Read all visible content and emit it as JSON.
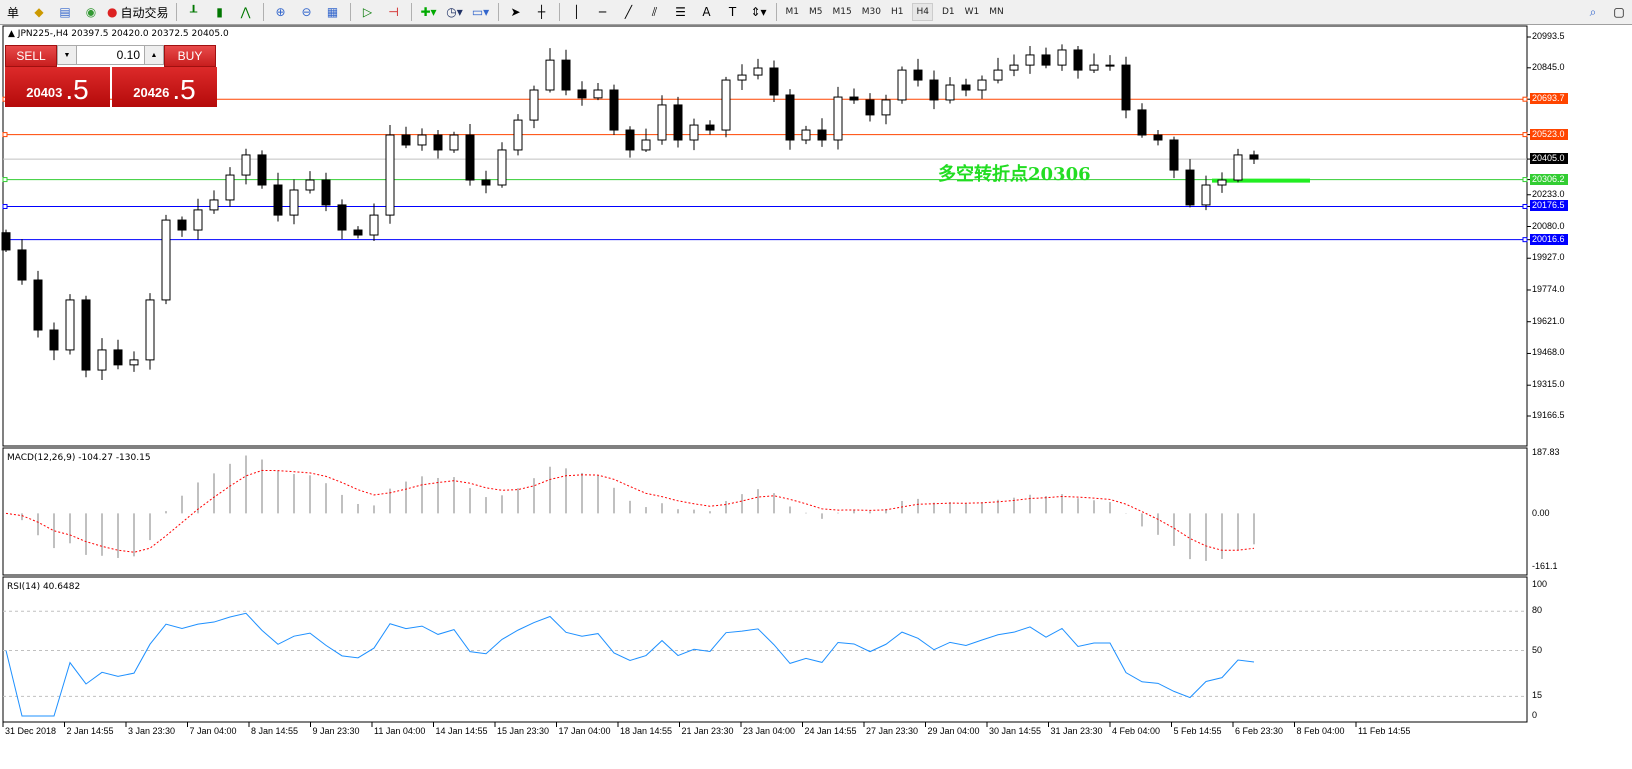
{
  "toolbar": {
    "left_text": "单",
    "auto_trade": "自动交易",
    "timeframes": [
      "M1",
      "M5",
      "M15",
      "M30",
      "H1",
      "H4",
      "D1",
      "W1",
      "MN"
    ],
    "active_timeframe": "H4"
  },
  "chart": {
    "symbol_line": "JPN225-,H4  20397.5 20420.0 20372.5 20405.0",
    "trade_panel": {
      "sell_label": "SELL",
      "buy_label": "BUY",
      "lot": "0.10",
      "sell_price_main": "20403",
      "sell_price_frac": ".5",
      "buy_price_main": "20426",
      "buy_price_frac": ".5"
    },
    "annotation": "多空转折点20306",
    "price_axis": [
      "20993.5",
      "20845.0",
      "20693.7",
      "20523.0",
      "20405.0",
      "20306.2",
      "20233.0",
      "20176.5",
      "20080.0",
      "20016.6",
      "19927.0",
      "19774.0",
      "19621.0",
      "19468.0",
      "19315.0",
      "19166.5"
    ],
    "price_ylim": [
      19166.5,
      20993.5
    ],
    "levels": [
      {
        "price": 20693.7,
        "label": "20693.7",
        "color": "#ff4500"
      },
      {
        "price": 20523.0,
        "label": "20523.0",
        "color": "#ff4500"
      },
      {
        "price": 20405.0,
        "label": "20405.0",
        "color": "#000000",
        "line": "#c0c0c0"
      },
      {
        "price": 20306.2,
        "label": "20306.2",
        "color": "#32cd32"
      },
      {
        "price": 20176.5,
        "label": "20176.5",
        "color": "#0000ff"
      },
      {
        "price": 20016.6,
        "label": "20016.6",
        "color": "#0000ff"
      }
    ],
    "closes": [
      19967,
      19822,
      19581,
      19485,
      19726,
      19388,
      19485,
      19413,
      19437,
      19726,
      20111,
      20063,
      20160,
      20208,
      20328,
      20425,
      20280,
      20135,
      20256,
      20304,
      20184,
      20063,
      20039,
      20135,
      20521,
      20473,
      20521,
      20449,
      20521,
      20304,
      20280,
      20449,
      20593,
      20738,
      20882,
      20738,
      20700,
      20738,
      20545,
      20449,
      20497,
      20666,
      20497,
      20569,
      20545,
      20786,
      20810,
      20844,
      20714,
      20497,
      20545,
      20497,
      20704,
      20690,
      20618,
      20690,
      20834,
      20786,
      20690,
      20762,
      20738,
      20786,
      20834,
      20858,
      20907,
      20858,
      20931,
      20834,
      20858,
      20858,
      20642,
      20521,
      20497,
      20352,
      20184,
      20280,
      20304,
      20425,
      20405
    ],
    "colors": {
      "up_body": "#ffffff",
      "down_body": "#000000",
      "macd_hist": "#c0c0c0",
      "macd_signal": "#ff0000",
      "rsi": "#1e90ff"
    }
  },
  "macd": {
    "label": "MACD(12,26,9) -104.27 -130.15",
    "axis": [
      "187.83",
      "0.00",
      "-161.1"
    ],
    "ylim": [
      -161.1,
      187.83
    ]
  },
  "rsi": {
    "label": "RSI(14) 40.6482",
    "axis": [
      "100",
      "80",
      "50",
      "15",
      "0"
    ],
    "levels": [
      80,
      50,
      15
    ]
  },
  "time_axis": [
    "31 Dec 2018",
    "2 Jan 14:55",
    "3 Jan 23:30",
    "7 Jan 04:00",
    "8 Jan 14:55",
    "9 Jan 23:30",
    "11 Jan 04:00",
    "14 Jan 14:55",
    "15 Jan 23:30",
    "17 Jan 04:00",
    "18 Jan 14:55",
    "21 Jan 23:30",
    "23 Jan 04:00",
    "24 Jan 14:55",
    "27 Jan 23:30",
    "29 Jan 04:00",
    "30 Jan 14:55",
    "31 Jan 23:30",
    "4 Feb 04:00",
    "5 Feb 14:55",
    "6 Feb 23:30",
    "8 Feb 04:00",
    "11 Feb 14:55"
  ]
}
